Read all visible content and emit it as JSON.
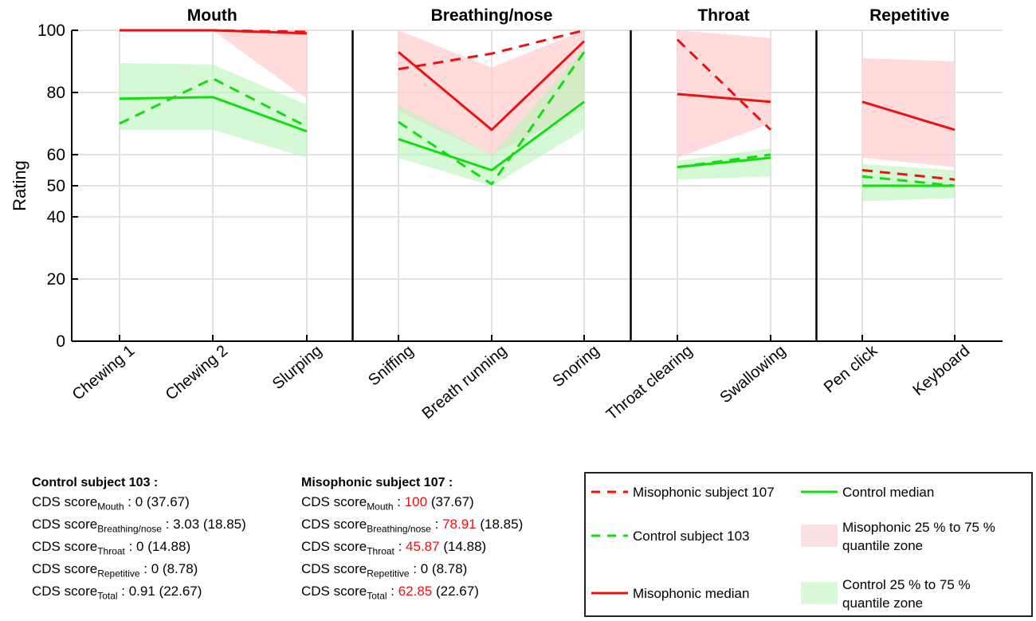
{
  "chart_data": {
    "type": "line",
    "ylabel": "Rating",
    "ylim": [
      0,
      100
    ],
    "yticks": [
      0,
      20,
      40,
      50,
      60,
      80,
      100
    ],
    "grid": true,
    "categories": [
      "Chewing 1",
      "Chewing 2",
      "Slurping",
      "Sniffing",
      "Breath running",
      "Snoring",
      "Throat clearing",
      "Swallowing",
      "Pen click",
      "Keyboard"
    ],
    "groups": [
      {
        "title": "Mouth",
        "categories": [
          "Chewing 1",
          "Chewing 2",
          "Slurping"
        ]
      },
      {
        "title": "Breathing/nose",
        "categories": [
          "Sniffing",
          "Breath running",
          "Snoring"
        ]
      },
      {
        "title": "Throat",
        "categories": [
          "Throat clearing",
          "Swallowing"
        ]
      },
      {
        "title": "Repetitive",
        "categories": [
          "Pen click",
          "Keyboard"
        ]
      }
    ],
    "series": [
      {
        "name": "Misophonic subject 107",
        "style": "dashed",
        "color": "#ee1111",
        "values": [
          100,
          100,
          99.5,
          87.5,
          92.5,
          100,
          97,
          68,
          55,
          52
        ]
      },
      {
        "name": "Control subject 103",
        "style": "dashed",
        "color": "#11dd11",
        "values": [
          70,
          84.5,
          69,
          70.5,
          50.5,
          93,
          56,
          60,
          53,
          50
        ]
      },
      {
        "name": "Misophonic median",
        "style": "solid",
        "color": "#ee1111",
        "values": [
          100,
          100,
          99,
          93,
          68,
          96.5,
          79.5,
          77,
          77,
          68
        ]
      },
      {
        "name": "Control median",
        "style": "solid",
        "color": "#11dd11",
        "values": [
          78,
          78.5,
          67.5,
          65,
          55,
          77,
          56,
          59,
          50,
          50
        ]
      }
    ],
    "bands": [
      {
        "name": "Misophonic 25 % to 75 % quantile zone",
        "color": "#ffcccc",
        "opacity": 0.7,
        "lower": [
          100,
          100,
          78,
          74,
          60,
          75,
          59,
          70,
          59,
          56
        ],
        "upper": [
          100,
          100,
          100,
          100,
          88,
          100,
          100,
          97.5,
          91,
          90
        ]
      },
      {
        "name": "Control 25 % to 75 % quantile zone",
        "color": "#b8f5b8",
        "opacity": 0.6,
        "lower": [
          68,
          68,
          59,
          59,
          50,
          68,
          52,
          53,
          45,
          46
        ],
        "upper": [
          89.5,
          89,
          76,
          76,
          60,
          94,
          58,
          62,
          57,
          55
        ]
      }
    ],
    "legend": {
      "placement": "bottom-right",
      "items": [
        {
          "label": "Misophonic subject 107",
          "kind": "dashed",
          "color": "#ee1111"
        },
        {
          "label": "Control median",
          "kind": "solid",
          "color": "#11dd11"
        },
        {
          "label": "Control subject 103",
          "kind": "dashed",
          "color": "#11dd11"
        },
        {
          "label": "Misophonic 25 % to 75 %",
          "label2": "quantile zone",
          "kind": "band",
          "color": "#fde0e0"
        },
        {
          "label": "Misophonic median",
          "kind": "solid",
          "color": "#ee1111"
        },
        {
          "label": "Control 25 % to 75 %",
          "label2": "quantile zone",
          "kind": "band",
          "color": "#d9fbd9"
        }
      ]
    }
  },
  "scores": {
    "control": {
      "heading": "Control subject 103 :",
      "rows": [
        {
          "prefix": "CDS score",
          "sub": "Mouth",
          "sep": " : ",
          "value": "0",
          "ref": " (37.67)"
        },
        {
          "prefix": "CDS score",
          "sub": "Breathing/nose",
          "sep": " : ",
          "value": "3.03",
          "ref": " (18.85)"
        },
        {
          "prefix": "CDS score",
          "sub": "Throat",
          "sep": " : ",
          "value": "0",
          "ref": " (14.88)"
        },
        {
          "prefix": "CDS score",
          "sub": "Repetitive",
          "sep": " : ",
          "value": "0",
          "ref": " (8.78)"
        },
        {
          "prefix": "CDS score",
          "sub": "Total",
          "sep": " : ",
          "value": "0.91",
          "ref": " (22.67)"
        }
      ]
    },
    "misophonic": {
      "heading": "Misophonic subject 107 :",
      "rows": [
        {
          "prefix": "CDS score",
          "sub": "Mouth",
          "sep": " : ",
          "value": "100",
          "ref": " (37.67)",
          "highlight": true
        },
        {
          "prefix": "CDS score",
          "sub": "Breathing/nose",
          "sep": " : ",
          "value": "78.91",
          "ref": " (18.85)",
          "highlight": true
        },
        {
          "prefix": "CDS score",
          "sub": "Throat",
          "sep": " : ",
          "value": "45.87",
          "ref": " (14.88)",
          "highlight": true
        },
        {
          "prefix": "CDS score",
          "sub": "Repetitive",
          "sep": " : ",
          "value": "0",
          "ref": " (8.78)",
          "highlight": false
        },
        {
          "prefix": "CDS score",
          "sub": "Total",
          "sep": " : ",
          "value": "62.85",
          "ref": " (22.67)",
          "highlight": true
        }
      ]
    }
  }
}
